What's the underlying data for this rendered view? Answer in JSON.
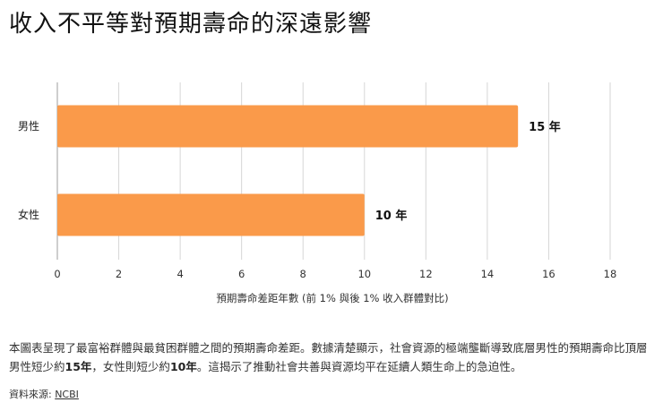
{
  "title": "收入不平等對預期壽命的深遠影響",
  "chart_data": {
    "type": "bar",
    "orientation": "horizontal",
    "categories": [
      "男性",
      "女性"
    ],
    "values": [
      15,
      10
    ],
    "value_labels": [
      "15 年",
      "10 年"
    ],
    "xlabel": "預期壽命差距年數 (前 1% 與後 1% 收入群體對比)",
    "xlim": [
      0,
      18
    ],
    "xticks": [
      0,
      2,
      4,
      6,
      8,
      10,
      12,
      14,
      16,
      18
    ],
    "grid": true,
    "bar_color": "#FA9A4A"
  },
  "caption": {
    "part1": "本圖表呈現了最富裕群體與最貧困群體之間的預期壽命差距。數據清楚顯示，社會資源的極端壟斷導致底層男性的預期壽命比頂層男性短少約",
    "male_years": "15年",
    "part2": "，女性則短少約",
    "female_years": "10年",
    "part3": "。這揭示了推動社會共善與資源均平在延續人類生命上的急迫性。"
  },
  "source": {
    "label": "資料來源: ",
    "link": "NCBI"
  }
}
